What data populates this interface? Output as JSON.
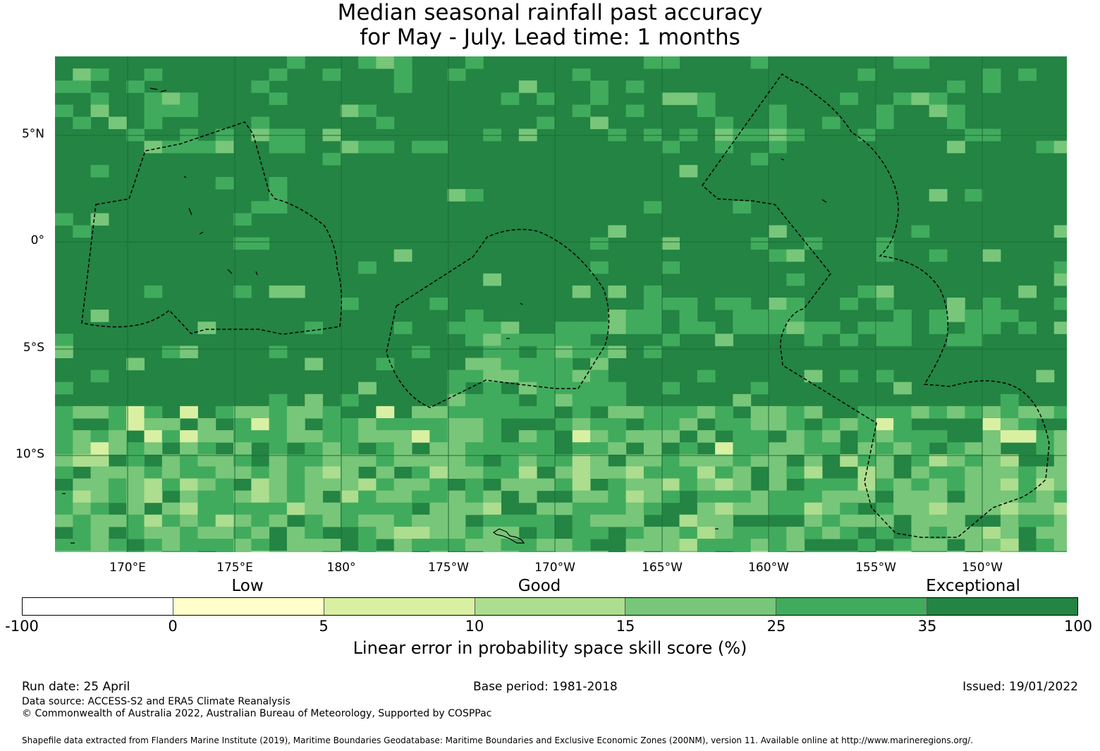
{
  "title": {
    "line1": "Median seasonal rainfall past accuracy",
    "line2": "for May - July. Lead time: 1 months"
  },
  "map": {
    "lat_labels": [
      "5°N",
      "0°",
      "5°S",
      "10°S"
    ],
    "lon_labels": [
      "170°E",
      "175°E",
      "180°",
      "175°W",
      "170°W",
      "165°W",
      "160°W",
      "155°W",
      "150°W"
    ],
    "base_color": "#238443"
  },
  "colorbar": {
    "categories": [
      "Low",
      "Good",
      "Exceptional"
    ],
    "ticks": [
      "-100",
      "0",
      "5",
      "10",
      "15",
      "25",
      "35",
      "100"
    ],
    "colors": [
      "#ffffff",
      "#ffffcc",
      "#d9f0a3",
      "#addd8e",
      "#78c679",
      "#41ab5d",
      "#238443"
    ],
    "label": "Linear error in probability space skill score (%)"
  },
  "footer": {
    "run_date": "Run date: 25 April",
    "base_period": "Base period: 1981-2018",
    "issued": "Issued: 19/01/2022",
    "data_source": "Data source: ACCESS-S2 and ERA5 Climate Reanalysis",
    "copyright": "© Commonwealth of Australia 2022, Australian Bureau of Meteorology, Supported by COSPPac",
    "shapefile": "Shapefile data extracted from Flanders Marine Institute (2019), Maritime Boundaries Geodatabase: Maritime Boundaries and Exclusive Economic Zones (200NM), version 11. Available online at http://www.marineregions.org/."
  }
}
